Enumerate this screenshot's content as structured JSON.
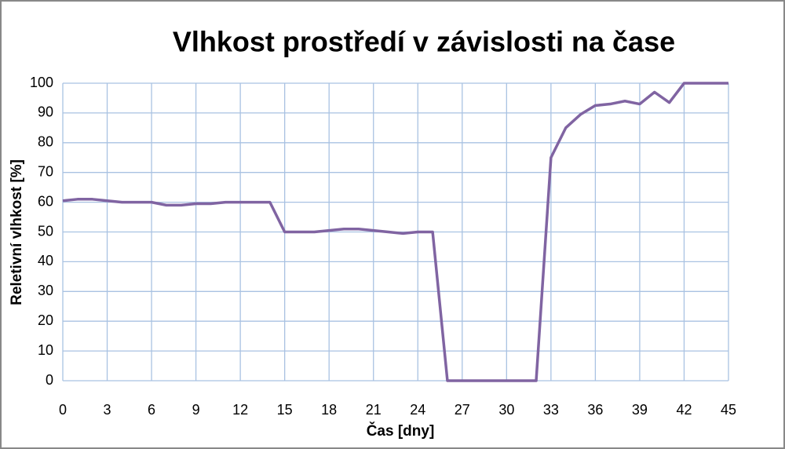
{
  "chart_data": {
    "type": "line",
    "title": "Vlhkost prostředí v závislosti na čase",
    "x_label": "Čas [dny]",
    "y_label": "Reletivní vlhkost [%]",
    "x": [
      0,
      1,
      2,
      3,
      4,
      5,
      6,
      7,
      8,
      9,
      10,
      11,
      12,
      13,
      14,
      15,
      16,
      17,
      18,
      19,
      20,
      21,
      22,
      23,
      24,
      25,
      26,
      27,
      28,
      29,
      30,
      31,
      32,
      33,
      34,
      35,
      36,
      37,
      38,
      39,
      40,
      41,
      42,
      43,
      44,
      45
    ],
    "series": [
      {
        "name": "Reletivní vlhkost",
        "color": "#8064a2",
        "values": [
          60.5,
          61,
          61,
          60.5,
          60,
          60,
          60,
          59,
          59,
          59.5,
          59.5,
          60,
          60,
          60,
          60,
          50,
          50,
          50,
          50.5,
          51,
          51,
          50.5,
          50,
          49.5,
          50,
          50,
          0,
          0,
          0,
          0,
          0,
          0,
          0,
          75,
          85,
          89.5,
          92.5,
          93,
          94,
          93,
          97,
          93.5,
          100,
          100,
          100,
          100
        ]
      }
    ],
    "xlim": [
      0,
      45
    ],
    "xticks": [
      0,
      3,
      6,
      9,
      12,
      15,
      18,
      21,
      24,
      27,
      30,
      33,
      36,
      39,
      42,
      45
    ],
    "ylim": [
      0,
      100
    ],
    "yticks": [
      0,
      10,
      20,
      30,
      40,
      50,
      60,
      70,
      80,
      90,
      100
    ],
    "grid": true
  }
}
